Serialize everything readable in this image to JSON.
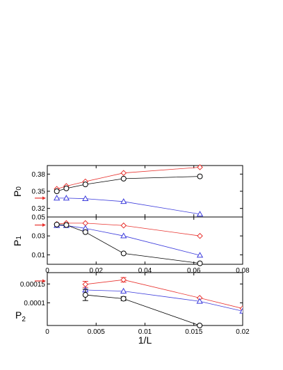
{
  "chart_data": [
    {
      "type": "line",
      "ylabel": "P",
      "ylabel_sub": "0",
      "xlim": [
        0,
        0.08
      ],
      "ylim": [
        0.305,
        0.395
      ],
      "yticks": [
        0.32,
        0.35,
        0.38
      ],
      "ytick_labels": [
        "0.32",
        "0.35",
        "0.38"
      ],
      "xticks": [
        0,
        0.02,
        0.04,
        0.06,
        0.08
      ],
      "arrow_value": 0.338,
      "series": [
        {
          "marker": "diamond",
          "color": "#e8322e",
          "x": [
            0.0039,
            0.0078,
            0.0156,
            0.03125,
            0.0625
          ],
          "y": [
            0.354,
            0.359,
            0.367,
            0.382,
            0.392
          ]
        },
        {
          "marker": "circle",
          "color": "#000000",
          "x": [
            0.0039,
            0.0078,
            0.0156,
            0.03125,
            0.0625
          ],
          "y": [
            0.35,
            0.355,
            0.362,
            0.372,
            0.376
          ]
        },
        {
          "marker": "triangle",
          "color": "#3b3bdc",
          "x": [
            0.0039,
            0.0078,
            0.0156,
            0.03125,
            0.0625
          ],
          "y": [
            0.338,
            0.338,
            0.337,
            0.332,
            0.31
          ]
        }
      ]
    },
    {
      "type": "line",
      "ylabel": "P",
      "ylabel_sub": "1",
      "xlim": [
        0,
        0.08
      ],
      "ylim": [
        0,
        0.05
      ],
      "yticks": [
        0.01,
        0.03,
        0.05
      ],
      "ytick_labels": [
        "0.01",
        "0.03",
        "0.05"
      ],
      "xticks": [
        0,
        0.02,
        0.04,
        0.06,
        0.08
      ],
      "xtick_labels": [
        "0",
        "0.02",
        "0.04",
        "0.06",
        "0.08"
      ],
      "arrow_value": 0.0415,
      "series": [
        {
          "marker": "diamond",
          "color": "#e8322e",
          "x": [
            0.0039,
            0.0078,
            0.0156,
            0.03125,
            0.0625
          ],
          "y": [
            0.0425,
            0.0435,
            0.0435,
            0.041,
            0.03
          ]
        },
        {
          "marker": "triangle",
          "color": "#3b3bdc",
          "x": [
            0.0039,
            0.0078,
            0.0156,
            0.03125,
            0.0625
          ],
          "y": [
            0.041,
            0.041,
            0.038,
            0.03,
            0.0095
          ]
        },
        {
          "marker": "circle",
          "color": "#000000",
          "x": [
            0.0039,
            0.0078,
            0.0156,
            0.03125,
            0.0625
          ],
          "y": [
            0.042,
            0.0415,
            0.034,
            0.0115,
            0.001
          ]
        }
      ]
    },
    {
      "type": "line",
      "xlabel": "1/L",
      "ylabel": "P",
      "ylabel_sub": "2",
      "xlim": [
        0,
        0.02
      ],
      "ylim": [
        4e-05,
        0.00018
      ],
      "yticks": [
        0.0001,
        0.00015
      ],
      "ytick_labels": [
        "0.0001",
        "0.00015"
      ],
      "xticks": [
        0,
        0.005,
        0.01,
        0.015,
        0.02
      ],
      "xtick_labels": [
        "0",
        "0.005",
        "0.01",
        "0.015",
        "0.02"
      ],
      "arrow_value": 0.000158,
      "series": [
        {
          "marker": "diamond",
          "color": "#e8322e",
          "x": [
            0.0039,
            0.0078,
            0.0156,
            0.02
          ],
          "y": [
            0.000149,
            0.000161,
            0.000113,
            8.5e-05
          ],
          "yerr": [
            8e-06,
            6e-06,
            0,
            0
          ]
        },
        {
          "marker": "triangle",
          "color": "#3b3bdc",
          "x": [
            0.0039,
            0.0078,
            0.0156,
            0.02
          ],
          "y": [
            0.000134,
            0.000131,
            0.000104,
            7.8e-05
          ],
          "yerr": [
            0,
            0,
            0,
            0
          ]
        },
        {
          "marker": "circle",
          "color": "#000000",
          "x": [
            0.0039,
            0.0078,
            0.0156
          ],
          "y": [
            0.000121,
            0.000111,
            4e-05
          ],
          "yerr": [
            1.5e-05,
            5e-06,
            0
          ]
        }
      ]
    }
  ]
}
